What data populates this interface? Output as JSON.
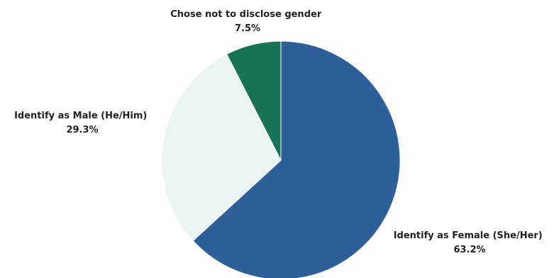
{
  "chart_data": {
    "type": "pie",
    "title": "",
    "start_angle_deg": 0,
    "direction": "clockwise",
    "slices": [
      {
        "label": "Identify as Female (She/Her)",
        "value": 63.2,
        "value_label": "63.2%",
        "color": "#2e5f99"
      },
      {
        "label": "Identify as Male (He/Him)",
        "value": 29.3,
        "value_label": "29.3%",
        "color": "#eaf5f3"
      },
      {
        "label": "Chose not to disclose gender",
        "value": 7.5,
        "value_label": "7.5%",
        "color": "#197456"
      }
    ]
  }
}
